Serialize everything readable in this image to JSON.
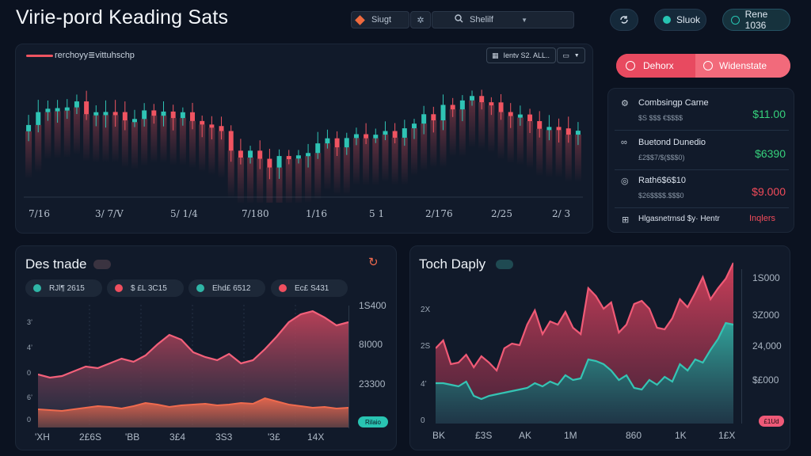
{
  "header": {
    "title": "Virie-pord Keading Sats",
    "segment_left": "Siugt",
    "segment_right": "Shelilf",
    "btn_icon": "refresh-icon",
    "pill1": "Sluok",
    "pill2": "Rene 1036"
  },
  "candles_panel": {
    "legend": "rerchoyy≣vittuhschp",
    "chip": "Ientv S2. ALL..",
    "x_ticks": [
      "7/16",
      "3/ 7/V",
      "5/ 1/4",
      "7/180",
      "1/16",
      "5 1",
      "2/176",
      "2/25",
      "2/ 3"
    ]
  },
  "toggle": {
    "left": "Dehorx",
    "right": "Widenstate"
  },
  "positions": [
    {
      "name": "Combsingp Carne",
      "sub": "$S $$$ €$$$$",
      "value": "$11.00",
      "color": "#36d17c",
      "icon": "sliders-icon"
    },
    {
      "name": "Buetond Dunedio",
      "sub": "£2$$7/$($$$0)",
      "value": "$6390",
      "color": "#36d17c",
      "icon": "link-icon"
    },
    {
      "name": "Rath6$6$10",
      "sub": "$26$$$$.$$$0",
      "value": "$9.000",
      "color": "#f24b5a",
      "icon": "coin-icon"
    }
  ],
  "footer_row": {
    "label": "Hlgasnetrnsd $y· Hentr",
    "value": "Inqlers"
  },
  "trade_panel": {
    "title": "Des tnade",
    "filters": [
      {
        "label": "RJl¶ 2615",
        "color": "#2fb5a6"
      },
      {
        "label": "$ £L 3C15",
        "color": "#ef4f5f"
      },
      {
        "label": "Ehd£ 6512",
        "color": "#2fb5a6"
      },
      {
        "label": "Ec£ S431",
        "color": "#ef4f5f"
      }
    ],
    "y_left": [
      "3’",
      "4’",
      "0",
      "6’",
      "0"
    ],
    "y_right": [
      "1S400",
      "8I000",
      "23300"
    ],
    "x_ticks": [
      "'XH",
      "2£6S",
      "'BB",
      "3£4",
      "3S3",
      "'3£",
      "14X"
    ],
    "badge": "Rilaio"
  },
  "depth_panel": {
    "title": "Toch Daply",
    "y_left": [
      "2X",
      "2S",
      "4’",
      "0"
    ],
    "y_right": [
      "1S000",
      "3Z000",
      "24,000",
      "$£000"
    ],
    "x_ticks": [
      "BK",
      "£3S",
      "AK",
      "1M",
      "860",
      "1K",
      "1£X"
    ],
    "badge": "£1Ud"
  },
  "colors": {
    "bull": "#2fc3b4",
    "bear": "#ef5461",
    "accent_red": "#f0566a",
    "accent_teal": "#2bb0a4"
  }
}
